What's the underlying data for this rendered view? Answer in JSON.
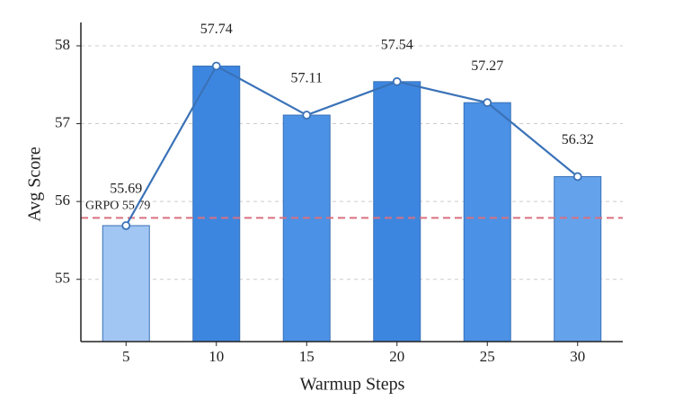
{
  "chart_data": {
    "type": "bar",
    "x_label": "Warmup Steps",
    "y_label": "Avg Score",
    "categories": [
      "5",
      "10",
      "15",
      "20",
      "25",
      "30"
    ],
    "values": [
      55.69,
      57.74,
      57.11,
      57.54,
      57.27,
      56.32
    ],
    "colors": [
      "#a2c6f3",
      "#3d86e0",
      "#4b91e5",
      "#3d86e0",
      "#4b91e5",
      "#64a2ec"
    ],
    "line": true,
    "line_color": "#3a72b8",
    "reference_line": {
      "label": "GRPO 55.79",
      "value": 55.79,
      "color": "#d9707f"
    },
    "ylim": [
      54.2,
      58.3
    ],
    "yticks": [
      55,
      56,
      57,
      58
    ],
    "grid": true
  }
}
